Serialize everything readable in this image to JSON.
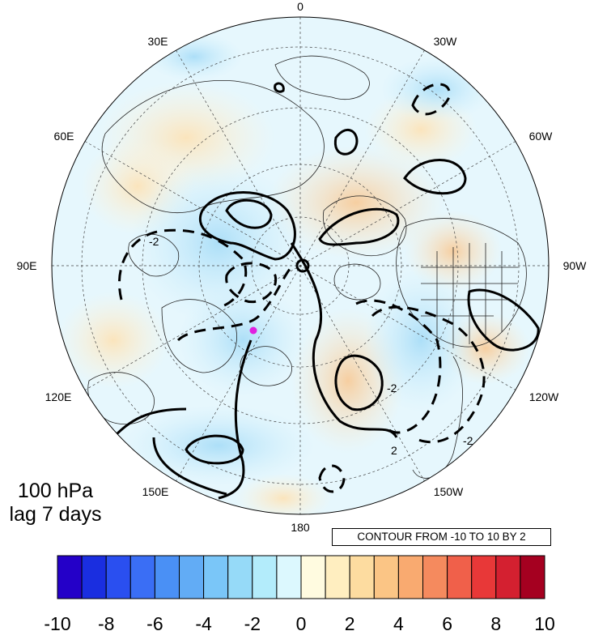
{
  "map": {
    "projection": "polar stereographic, northern hemisphere",
    "longitude_labels": [
      "0",
      "30W",
      "60W",
      "90W",
      "120W",
      "150W",
      "180",
      "150E",
      "120E",
      "90E",
      "60E",
      "30E"
    ],
    "contour_style": "solid = positive, dashed = negative",
    "marker_color": "#e020e0",
    "inline_contour_labels": [
      "-2",
      "-2",
      "-2",
      "2"
    ]
  },
  "panel": {
    "level": "100 hPa",
    "lag": "lag 7 days"
  },
  "contour_info": "CONTOUR FROM -10 TO 10 BY 2",
  "colorbar": {
    "tick_labels": [
      "-10",
      "-8",
      "-6",
      "-4",
      "-2",
      "0",
      "2",
      "4",
      "6",
      "8",
      "10"
    ],
    "colors": [
      "#2400c8",
      "#1a2ee0",
      "#2a4ff0",
      "#3a6ef5",
      "#4a90f5",
      "#62acf5",
      "#7ac6f8",
      "#96daf8",
      "#b3ecfb",
      "#dcf8fe",
      "#fffbe0",
      "#ffeec0",
      "#fddca0",
      "#fbc585",
      "#f9aa70",
      "#f58a5e",
      "#f0604a",
      "#e83838",
      "#d42030",
      "#a50020"
    ]
  }
}
